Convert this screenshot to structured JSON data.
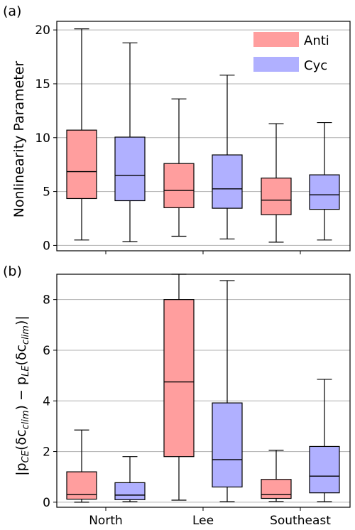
{
  "chart_data": [
    {
      "type": "box",
      "panel_label": "(a)",
      "ylabel": "Nonlinearity Parameter",
      "ylim": [
        -0.5,
        20.8
      ],
      "yticks": [
        0,
        5,
        10,
        15,
        20
      ],
      "grid": "horizontal",
      "legend_position": "top-right",
      "categories": [
        "North",
        "Lee",
        "Southeast"
      ],
      "show_xtick_labels": false,
      "series": [
        {
          "name": "Anti",
          "color": "#ff9e9e",
          "boxes": [
            {
              "category": "North",
              "min": 0.5,
              "q1": 4.35,
              "median": 6.85,
              "q3": 10.7,
              "max": 20.1
            },
            {
              "category": "Lee",
              "min": 0.85,
              "q1": 3.5,
              "median": 5.1,
              "q3": 7.6,
              "max": 13.6
            },
            {
              "category": "Southeast",
              "min": 0.3,
              "q1": 2.85,
              "median": 4.2,
              "q3": 6.25,
              "max": 11.3
            }
          ]
        },
        {
          "name": "Cyc",
          "color": "#b0b0ff",
          "boxes": [
            {
              "category": "North",
              "min": 0.35,
              "q1": 4.15,
              "median": 6.5,
              "q3": 10.05,
              "max": 18.8
            },
            {
              "category": "Lee",
              "min": 0.6,
              "q1": 3.45,
              "median": 5.25,
              "q3": 8.4,
              "max": 15.8
            },
            {
              "category": "Southeast",
              "min": 0.5,
              "q1": 3.35,
              "median": 4.7,
              "q3": 6.55,
              "max": 11.4
            }
          ]
        }
      ]
    },
    {
      "type": "box",
      "panel_label": "(b)",
      "ylabel": "|p_CE(δc_clim) − p_LE(δc_clim)|",
      "ylim": [
        -0.2,
        9.0
      ],
      "yticks": [
        0,
        2,
        4,
        6,
        8
      ],
      "grid": "horizontal",
      "categories": [
        "North",
        "Lee",
        "Southeast"
      ],
      "show_xtick_labels": true,
      "series": [
        {
          "name": "Anti",
          "color": "#ff9e9e",
          "boxes": [
            {
              "category": "North",
              "min": 0.0,
              "q1": 0.12,
              "median": 0.3,
              "q3": 1.2,
              "max": 2.85
            },
            {
              "category": "Lee",
              "min": 0.08,
              "q1": 1.8,
              "median": 4.75,
              "q3": 8.0,
              "max": 9.0
            },
            {
              "category": "Southeast",
              "min": 0.03,
              "q1": 0.15,
              "median": 0.3,
              "q3": 0.9,
              "max": 2.05
            }
          ]
        },
        {
          "name": "Cyc",
          "color": "#b0b0ff",
          "boxes": [
            {
              "category": "North",
              "min": 0.02,
              "q1": 0.1,
              "median": 0.28,
              "q3": 0.77,
              "max": 1.8
            },
            {
              "category": "Lee",
              "min": 0.02,
              "q1": 0.6,
              "median": 1.68,
              "q3": 3.92,
              "max": 8.75
            },
            {
              "category": "Southeast",
              "min": 0.02,
              "q1": 0.37,
              "median": 1.03,
              "q3": 2.2,
              "max": 4.85
            }
          ]
        }
      ]
    }
  ]
}
